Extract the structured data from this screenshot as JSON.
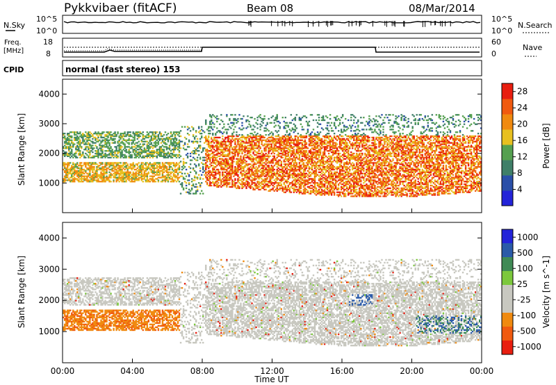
{
  "header": {
    "title": "Pykkvibaer (fitACF)",
    "beam": "Beam 08",
    "date": "08/Mar/2014"
  },
  "meta_panels": {
    "nsky_label": "N.Sky",
    "nsky_ticks": [
      "10^5",
      "10^0"
    ],
    "nsearch_label": "N.Search",
    "nsearch_ticks": [
      "10^5",
      "10^0"
    ],
    "freq_label_line1": "Freq.",
    "freq_label_line2": "[MHz]",
    "freq_ticks": [
      "18",
      "8"
    ],
    "nave_label": "Nave",
    "nave_ticks": [
      "60",
      "0"
    ],
    "cpid_label": "CPID",
    "cpid_text": "normal (fast stereo) 153"
  },
  "colors": {
    "power_scale": [
      "#2323d8",
      "#2a4fa8",
      "#3f7f68",
      "#55a050",
      "#e8c020",
      "#f08a10",
      "#f05a10",
      "#e81e10"
    ],
    "velocity_scale": [
      "#e81e10",
      "#f05a10",
      "#f08a10",
      "#c8c8c0",
      "#c8c8c0",
      "#7cc83c",
      "#3f8a55",
      "#2a5aa8",
      "#2323d8"
    ],
    "ground_scatter": "#c8c8c0"
  },
  "chart_data": [
    {
      "type": "heatmap",
      "name": "power",
      "ylabel": "Slant Range [km]",
      "ylim": [
        0,
        4500
      ],
      "y_ticks": [
        "1000",
        "2000",
        "3000",
        "4000"
      ],
      "x": [
        "00:00",
        "04:00",
        "08:00",
        "12:00",
        "16:00",
        "20:00",
        "00:00"
      ],
      "colorbar": {
        "label": "Power [dB]",
        "ticks": [
          "4",
          "8",
          "12",
          "16",
          "20",
          "24",
          "28"
        ],
        "range": [
          0,
          30
        ]
      }
    },
    {
      "type": "heatmap",
      "name": "velocity",
      "ylabel": "Slant Range [km]",
      "ylim": [
        0,
        4500
      ],
      "y_ticks": [
        "1000",
        "2000",
        "3000",
        "4000"
      ],
      "xlabel": "Time UT",
      "x_ticks": [
        "00:00",
        "04:00",
        "08:00",
        "12:00",
        "16:00",
        "20:00",
        "00:00"
      ],
      "colorbar": {
        "label": "Velocity [m s^-1]",
        "ticks": [
          "1000",
          "500",
          "100",
          "25",
          "-25",
          "-100",
          "-500",
          "-1000"
        ]
      }
    }
  ]
}
